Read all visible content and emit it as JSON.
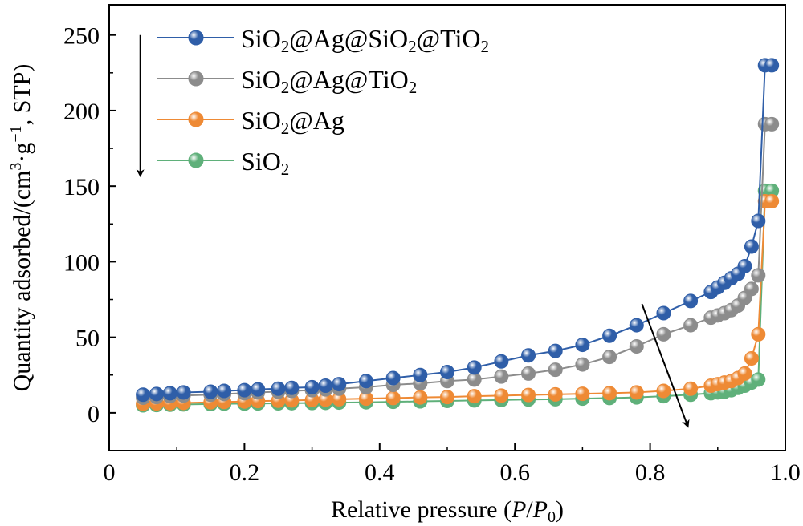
{
  "chart_data": {
    "type": "line",
    "xlabel": "Relative pressure (P/P0)",
    "xlabel_parts": {
      "pre": "Relative pressure (",
      "p": "P",
      "slash": "/",
      "p0": "P",
      "sub0": "0",
      "post": ")"
    },
    "ylabel": "Quantity adsorbed/(cm³·g⁻¹, STP)",
    "ylabel_parts": {
      "pre": "Quantity adsorbed/(cm",
      "sup3": "3",
      "mid": "·g",
      "supm1": "−1",
      "post": ", STP)"
    },
    "xlim": [
      0,
      1.0
    ],
    "ylim": [
      -25,
      270
    ],
    "x_ticks": [
      0,
      0.2,
      0.4,
      0.6,
      0.8,
      1.0
    ],
    "x_tick_labels": [
      "0",
      "0.2",
      "0.4",
      "0.6",
      "0.8",
      "1.0"
    ],
    "y_ticks": [
      0,
      50,
      100,
      150,
      200,
      250
    ],
    "y_tick_labels": [
      "0",
      "50",
      "100",
      "150",
      "200",
      "250"
    ],
    "grid": false,
    "legend_position": "top-left",
    "x": [
      0.05,
      0.07,
      0.09,
      0.11,
      0.15,
      0.17,
      0.2,
      0.22,
      0.25,
      0.27,
      0.3,
      0.32,
      0.34,
      0.38,
      0.42,
      0.46,
      0.5,
      0.54,
      0.58,
      0.62,
      0.66,
      0.7,
      0.74,
      0.78,
      0.82,
      0.86,
      0.89,
      0.9,
      0.91,
      0.92,
      0.93,
      0.94,
      0.95,
      0.96,
      0.97,
      0.98
    ],
    "series": [
      {
        "name": "SiO2@Ag@SiO2@TiO2",
        "legend_parts": [
          "SiO",
          "2",
          "@Ag@SiO",
          "2",
          "@TiO",
          "2"
        ],
        "color": "#2f5ea8",
        "values": [
          12,
          12.5,
          13,
          13.5,
          14,
          14.5,
          15,
          15.5,
          16,
          16.5,
          17,
          18,
          19,
          21,
          23,
          25,
          27,
          30,
          34,
          38,
          41,
          45,
          51,
          58,
          66,
          74,
          80,
          83,
          86,
          89,
          92,
          97,
          110,
          127,
          230,
          230
        ]
      },
      {
        "name": "SiO2@Ag@TiO2",
        "legend_parts": [
          "SiO",
          "2",
          "@Ag@TiO",
          "2"
        ],
        "color": "#8c8c8c",
        "values": [
          10,
          10.5,
          11,
          11.5,
          12,
          12.5,
          13,
          13.5,
          14,
          14.5,
          15,
          15.5,
          16,
          17,
          18.5,
          19.5,
          21,
          22,
          24,
          26,
          28.5,
          32,
          37,
          44,
          52,
          58,
          63,
          64.5,
          66,
          68,
          71,
          76,
          82,
          91,
          191,
          191
        ]
      },
      {
        "name": "SiO2@Ag",
        "legend_parts": [
          "SiO",
          "2",
          "@Ag"
        ],
        "color": "#ee8a35",
        "values": [
          6,
          6.2,
          6.4,
          6.6,
          7,
          7.2,
          7.5,
          7.8,
          8,
          8.2,
          8.5,
          8.7,
          9,
          9.4,
          9.8,
          10.2,
          10.5,
          11,
          11.4,
          11.8,
          12.2,
          12.6,
          13,
          13.5,
          14.5,
          16,
          18,
          19,
          20,
          21,
          23,
          26,
          36,
          52,
          140,
          140
        ]
      },
      {
        "name": "SiO2",
        "legend_parts": [
          "SiO",
          "2"
        ],
        "color": "#5fb07a",
        "values": [
          5,
          5.2,
          5.4,
          5.6,
          5.8,
          6,
          6.1,
          6.2,
          6.3,
          6.4,
          6.5,
          6.6,
          6.8,
          7,
          7.3,
          7.6,
          7.9,
          8.2,
          8.5,
          8.8,
          9,
          9.4,
          9.8,
          10.2,
          11,
          12,
          13,
          13.5,
          14,
          15,
          16.5,
          18,
          20,
          22,
          147,
          147
        ]
      }
    ],
    "arrows": [
      {
        "from": [
          0.046,
          250
        ],
        "to": [
          0.046,
          158
        ]
      },
      {
        "from": [
          0.788,
          72
        ],
        "to": [
          0.855,
          -8
        ]
      }
    ]
  }
}
